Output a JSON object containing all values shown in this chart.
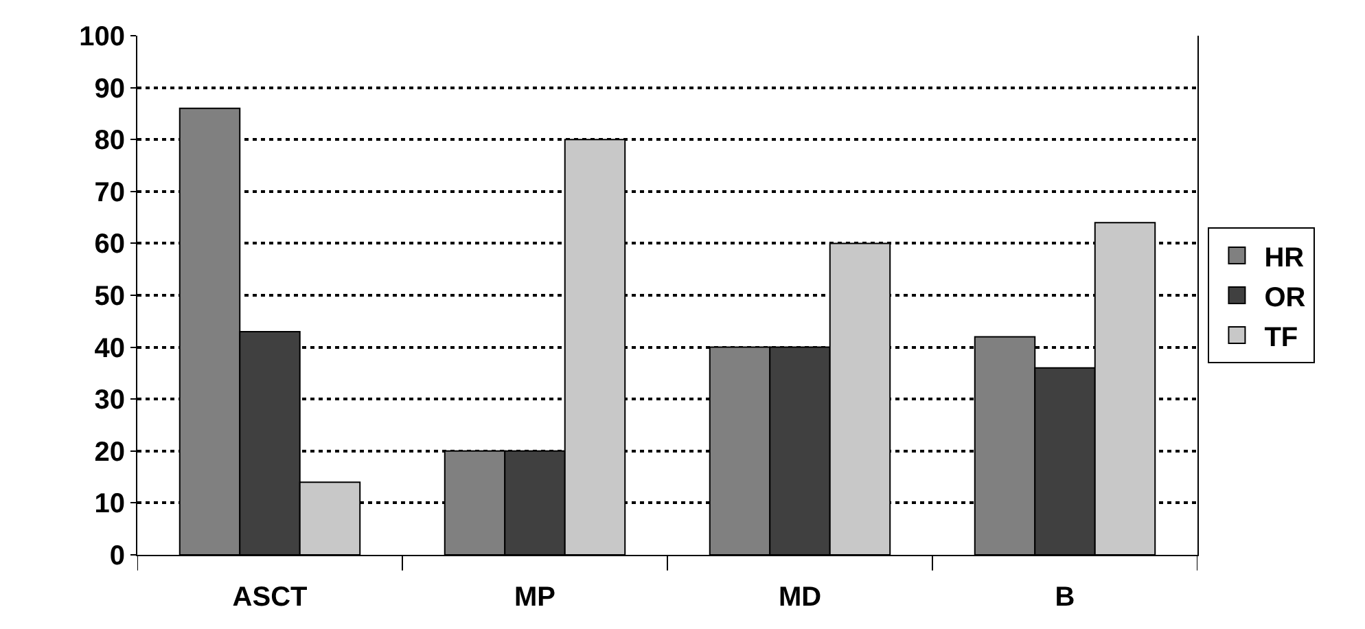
{
  "chart_data": {
    "type": "bar",
    "categories": [
      "ASCT",
      "MP",
      "MD",
      "B"
    ],
    "series": [
      {
        "name": "HR",
        "color": "#808080",
        "values": [
          86,
          20,
          40,
          42
        ]
      },
      {
        "name": "OR",
        "color": "#404040",
        "values": [
          43,
          20,
          40,
          36
        ]
      },
      {
        "name": "TF",
        "color": "#c8c8c8",
        "values": [
          14,
          80,
          60,
          64
        ]
      }
    ],
    "ylim": [
      0,
      100
    ],
    "yticks": [
      0,
      10,
      20,
      30,
      40,
      50,
      60,
      70,
      80,
      90,
      100
    ],
    "grid": "y",
    "legend": "right"
  }
}
